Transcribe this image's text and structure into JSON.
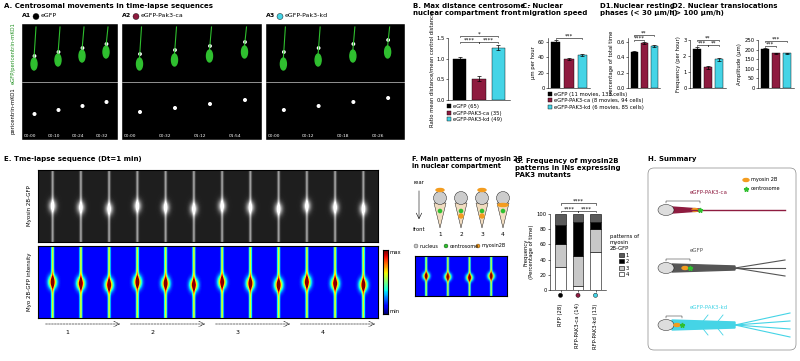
{
  "image_panels": {
    "A": {
      "title": "A. Centrosomal movements in time-lapse sequences",
      "row_labels": [
        "eGFP/pericentrin-mKO1",
        "pericentrin-mKO1"
      ],
      "subpanels": [
        {
          "label": "A1",
          "name": "eGFP",
          "color": "#000000",
          "times": [
            "00:00",
            "00:10",
            "00:24",
            "00:32"
          ]
        },
        {
          "label": "A2",
          "name": "eGFP-Pak3-ca",
          "color": "#8e1b3f",
          "times": [
            "00:00",
            "00:32",
            "01:12",
            "01:54"
          ]
        },
        {
          "label": "A3",
          "name": "eGFP-Pak3-kd",
          "color": "#45d4e6",
          "times": [
            "00:00",
            "00:12",
            "00:18",
            "00:26"
          ]
        }
      ]
    },
    "E": {
      "title": "E. Tme-lapse sequence (Dt=1 min)",
      "row_labels": [
        "Myosin 2B-GFP",
        "Myo 2B-GFP intensity"
      ],
      "colorbar_labels": [
        "max",
        "min"
      ],
      "stage_labels": [
        "1",
        "2",
        "3",
        "4"
      ]
    }
  },
  "chart_data": [
    {
      "type": "bar",
      "title": "B. Max distance centrosome -\nnuclear compartment front",
      "y_label": "Ratio mean distance/mean control distance",
      "categories": [
        null,
        null,
        null
      ],
      "series": [
        {
          "name": "eGFP (65)",
          "color": "#000000",
          "values": [
            1.0,
            null,
            null
          ],
          "errors": [
            0.05,
            null,
            null
          ]
        },
        {
          "name": "eGFP-PAK3-ca (35)",
          "color": "#8e1b3f",
          "values": [
            null,
            0.52,
            null
          ],
          "errors": [
            null,
            0.07,
            null
          ]
        },
        {
          "name": "eGFP-PAK3-kd (49)",
          "color": "#45d4e6",
          "values": [
            null,
            null,
            1.27
          ],
          "errors": [
            null,
            null,
            0.07
          ]
        }
      ],
      "ylim": [
        0,
        1.5
      ],
      "yticks": [
        {
          "value": 0,
          "label": "0.0"
        },
        {
          "value": 0.5,
          "label": "0.5"
        },
        {
          "value": 1,
          "label": "1.0"
        },
        {
          "value": 1.5,
          "label": "1.5"
        }
      ],
      "legend": "below",
      "significance": [
        {
          "from": 0,
          "to": 1,
          "label": "****"
        },
        {
          "from": 1,
          "to": 2,
          "label": "****"
        },
        {
          "from": 0,
          "to": 2,
          "label": "*"
        }
      ]
    },
    {
      "type": "bar",
      "title": "C. Nuclear\nmigration speed",
      "y_label": "µm per hour",
      "categories": [
        null,
        null,
        null
      ],
      "series": [
        {
          "name": "eGFP (11 movies, 133 cells)",
          "color": "#000000",
          "values": [
            60,
            null,
            null
          ],
          "errors": [
            2,
            null,
            null
          ]
        },
        {
          "name": "eGFP-PAK3-ca (8 movies, 94 cells)",
          "color": "#8e1b3f",
          "values": [
            null,
            38,
            null
          ],
          "errors": [
            null,
            1.5,
            null
          ]
        },
        {
          "name": "eGFP-PAK3-kd (6 movies, 85 cells)",
          "color": "#45d4e6",
          "values": [
            null,
            null,
            43
          ],
          "errors": [
            null,
            null,
            1.5
          ]
        }
      ],
      "ylim": [
        0,
        65
      ],
      "yticks": [
        0,
        20,
        40,
        60
      ],
      "legend": "below",
      "significance": [
        {
          "from": 0,
          "to": 2,
          "label": "***"
        }
      ]
    },
    {
      "type": "bar",
      "title": "D1.Nuclear resting\nphases (< 30 µm/h)",
      "y_label": "percentage of total time",
      "categories": [
        null,
        null,
        null
      ],
      "values": [
        0.47,
        0.585,
        0.545
      ],
      "errors": [
        0.01,
        0.012,
        0.012
      ],
      "colors": [
        "#000000",
        "#8e1b3f",
        "#45d4e6"
      ],
      "ylim": [
        0,
        0.65
      ],
      "yticks": [
        {
          "value": 0,
          "label": "0.0"
        },
        {
          "value": 0.2,
          "label": "0.2"
        },
        {
          "value": 0.4,
          "label": "0.4"
        },
        {
          "value": 0.6,
          "label": "0.6"
        }
      ],
      "significance": [
        {
          "from": 0,
          "to": 1,
          "label": "****"
        },
        {
          "from": 0,
          "to": 2,
          "label": "**"
        }
      ]
    },
    {
      "type": "bar",
      "title": "D2. Nuclear translocations\n(> 100 µm/h)",
      "y_label": "Frequency (per hour)",
      "categories": [
        null,
        null,
        null
      ],
      "values": [
        2.45,
        1.3,
        1.8
      ],
      "errors": [
        0.1,
        0.1,
        0.1
      ],
      "colors": [
        "#000000",
        "#8e1b3f",
        "#45d4e6"
      ],
      "ylim": [
        0,
        3
      ],
      "yticks": [
        0,
        1,
        2,
        3
      ],
      "significance": [
        {
          "from": 0,
          "to": 1,
          "label": "***"
        },
        {
          "from": 1,
          "to": 2,
          "label": "**"
        },
        {
          "from": 0,
          "to": 2,
          "label": "**"
        }
      ]
    },
    {
      "type": "bar",
      "y_label": "Amplitude (µm)",
      "categories": [
        null,
        null,
        null
      ],
      "values": [
        205,
        180,
        180
      ],
      "errors": [
        4,
        4,
        4
      ],
      "colors": [
        "#000000",
        "#8e1b3f",
        "#45d4e6"
      ],
      "ylim": [
        0,
        250
      ],
      "yticks": [
        0,
        50,
        100,
        150,
        200,
        250
      ],
      "significance": [
        {
          "from": 0,
          "to": 1,
          "label": "***"
        },
        {
          "from": 0,
          "to": 2,
          "label": "***"
        }
      ]
    },
    {
      "type": "bar",
      "stacked": true,
      "title": "G. Frequency of myosin2B\npatterns in INs expressing\nPAK3 mutants",
      "y_label": "Frequency\n(Percentage of time)",
      "categories": [
        "RFP (28)",
        "RFP-PAK3-ca (14)",
        "RFP-PAK3-kd (13)"
      ],
      "category_colors": [
        "#000000",
        "#8e1b3f",
        "#45d4e6"
      ],
      "series": [
        {
          "name": "1",
          "color": "#5a5a5a",
          "values": [
            15,
            10,
            10
          ]
        },
        {
          "name": "2",
          "color": "#000000",
          "values": [
            25,
            45,
            10
          ]
        },
        {
          "name": "3",
          "color": "#c8c8c8",
          "values": [
            30,
            40,
            30
          ]
        },
        {
          "name": "4",
          "color": "#ffffff",
          "values": [
            30,
            5,
            50
          ]
        }
      ],
      "legend_title": "patterns of\nmyosin\n2B-GFP",
      "legend": "right",
      "ylim": [
        0,
        100
      ],
      "yticks": [
        0,
        20,
        40,
        60,
        80,
        100
      ],
      "significance": [
        {
          "from": 0,
          "to": 1,
          "label": "****"
        },
        {
          "from": 1,
          "to": 2,
          "label": "****"
        },
        {
          "from": 0,
          "to": 2,
          "label": "****"
        }
      ]
    }
  ],
  "diagrams": {
    "F": {
      "title": "F. Main patterns of myosin 2B\nin nuclear compartment",
      "axis_labels": [
        "rear",
        "front"
      ],
      "pattern_labels": [
        "1",
        "2",
        "3",
        "4"
      ],
      "key_items": [
        "nucleus",
        "centrosome",
        "myosin2B"
      ]
    },
    "H": {
      "title": "H. Summary",
      "cells": [
        {
          "name": "eGFP-PAK3-ca",
          "color": "#8e1b3f"
        },
        {
          "name": "eGFP",
          "color": "#555555"
        },
        {
          "name": "eGFP-PAK3-kd",
          "color": "#45d4e6"
        }
      ],
      "key_items": [
        "myosin 2B",
        "centrosome"
      ]
    }
  }
}
